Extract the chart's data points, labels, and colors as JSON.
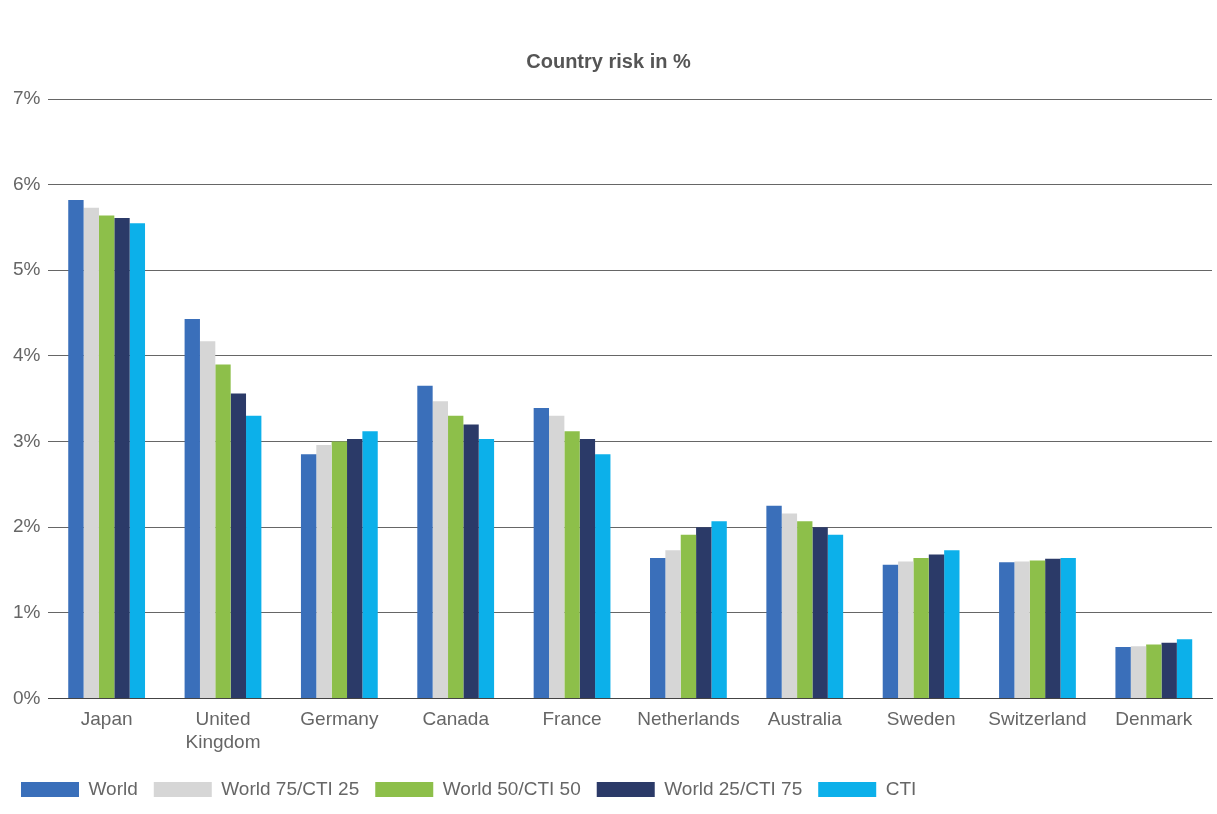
{
  "chart_data": {
    "type": "bar",
    "title": "Country risk in %",
    "categories": [
      "Japan",
      "United Kingdom",
      "Germany",
      "Canada",
      "France",
      "Netherlands",
      "Australia",
      "Sweden",
      "Switzerland",
      "Denmark"
    ],
    "series": [
      {
        "name": "World",
        "color": "#3a6fba",
        "values": [
          5.82,
          4.43,
          2.85,
          3.65,
          3.39,
          1.64,
          2.25,
          1.56,
          1.59,
          0.6
        ]
      },
      {
        "name": "World 75/CTI 25",
        "color": "#d6d6d6",
        "values": [
          5.73,
          4.17,
          2.96,
          3.47,
          3.3,
          1.73,
          2.16,
          1.6,
          1.6,
          0.61
        ]
      },
      {
        "name": "World 50/CTI 50",
        "color": "#8dbf4a",
        "values": [
          5.64,
          3.9,
          3.0,
          3.3,
          3.12,
          1.91,
          2.07,
          1.64,
          1.61,
          0.63
        ]
      },
      {
        "name": "World 25/CTI 75",
        "color": "#2b3a68",
        "values": [
          5.61,
          3.56,
          3.03,
          3.2,
          3.03,
          2.0,
          2.0,
          1.68,
          1.63,
          0.65
        ]
      },
      {
        "name": "CTI",
        "color": "#0cb0ea",
        "values": [
          5.55,
          3.3,
          3.12,
          3.03,
          2.85,
          2.07,
          1.91,
          1.73,
          1.64,
          0.69
        ]
      }
    ],
    "ylim": [
      0,
      7
    ],
    "yticks": [
      {
        "value": 0,
        "label": "0%"
      },
      {
        "value": 1,
        "label": "1%"
      },
      {
        "value": 2,
        "label": "2%"
      },
      {
        "value": 3,
        "label": "3%"
      },
      {
        "value": 4,
        "label": "4%"
      },
      {
        "value": 5,
        "label": "5%"
      },
      {
        "value": 6,
        "label": "6%"
      },
      {
        "value": 7,
        "label": "7%"
      }
    ],
    "grid": "y",
    "legend": "bottom"
  }
}
